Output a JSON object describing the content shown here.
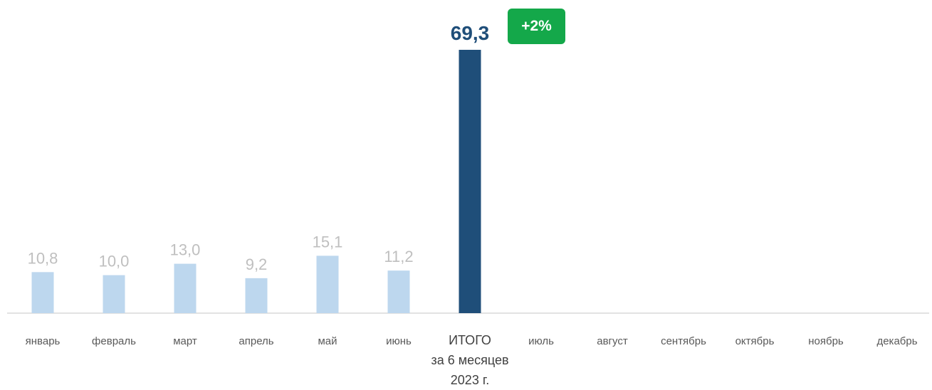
{
  "chart_data": {
    "type": "bar",
    "categories": [
      "январь",
      "февраль",
      "март",
      "апрель",
      "май",
      "июнь",
      "ИТОГО\nза 6 месяцев\n2023 г.",
      "июль",
      "август",
      "сентябрь",
      "октябрь",
      "ноябрь",
      "декабрь"
    ],
    "values": [
      10.8,
      10.0,
      13.0,
      9.2,
      15.1,
      11.2,
      69.3,
      null,
      null,
      null,
      null,
      null,
      null
    ],
    "value_labels": [
      "10,8",
      "10,0",
      "13,0",
      "9,2",
      "15,1",
      "11,2",
      "69,3",
      "",
      "",
      "",
      "",
      "",
      ""
    ],
    "total_index": 6,
    "badge": "+2%",
    "ylim": [
      0,
      69.3
    ],
    "grid": false,
    "colors": {
      "monthly": "#bdd7ee",
      "total": "#1f4e79",
      "badge": "#14a84a",
      "label_monthly": "#bfbfbf",
      "axis": "#d9d9d9"
    }
  }
}
